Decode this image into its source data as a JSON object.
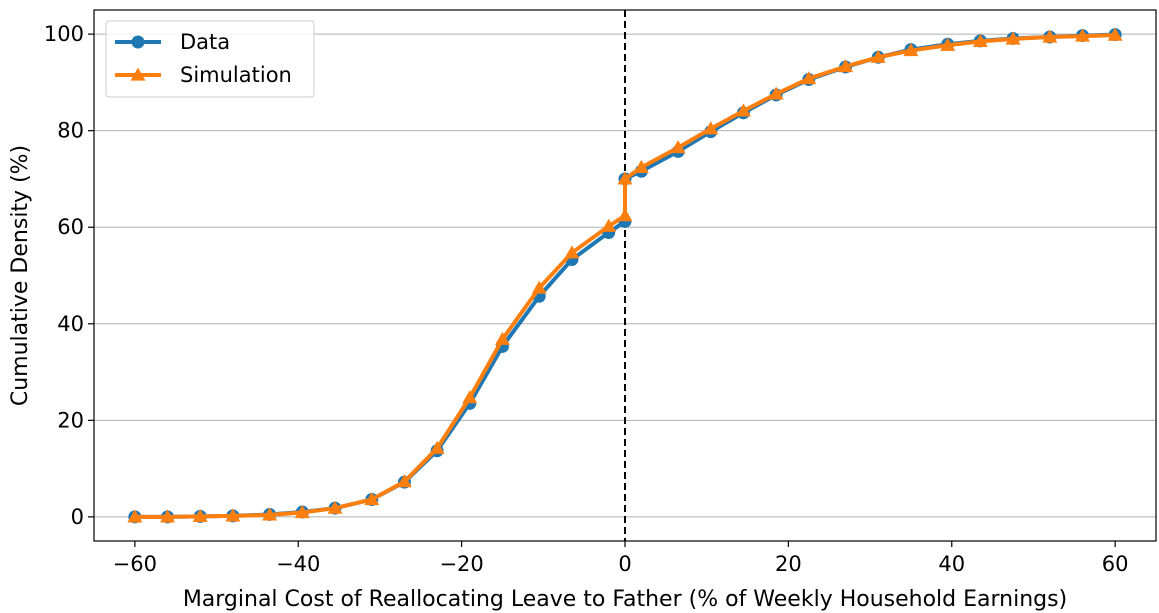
{
  "chart_data": {
    "type": "line",
    "title": "",
    "xlabel": "Marginal Cost of Reallocating Leave to Father (% of Weekly Household Earnings)",
    "ylabel": "Cumulative Density (%)",
    "xlim": [
      -65,
      65
    ],
    "ylim": [
      -5,
      105
    ],
    "xticks": [
      -60,
      -40,
      -20,
      0,
      20,
      40,
      60
    ],
    "xtick_labels": [
      "−60",
      "−40",
      "−20",
      "0",
      "20",
      "40",
      "60"
    ],
    "yticks": [
      0,
      20,
      40,
      60,
      80,
      100
    ],
    "ytick_labels": [
      "0",
      "20",
      "40",
      "60",
      "80",
      "100"
    ],
    "grid": "horizontal",
    "legend_position": "top-left",
    "reference_line": {
      "x": 0,
      "style": "dashed",
      "color": "#000000"
    },
    "series": [
      {
        "name": "Data",
        "marker": "circle",
        "color": "#1f77b4",
        "x": [
          -60,
          -56,
          -52,
          -48,
          -43.5,
          -39.5,
          -35.5,
          -31,
          -27,
          -23,
          -19,
          -15,
          -10.5,
          -6.5,
          -2,
          0,
          0,
          2,
          6.5,
          10.5,
          14.5,
          18.5,
          22.5,
          27,
          31,
          35,
          39.5,
          43.5,
          47.5,
          52,
          56,
          60
        ],
        "values": [
          0,
          0,
          0.1,
          0.2,
          0.5,
          1,
          1.8,
          3.6,
          7.2,
          13.7,
          23.5,
          35.3,
          45.7,
          53.3,
          58.9,
          61.2,
          70,
          71.6,
          75.7,
          79.8,
          83.7,
          87.4,
          90.6,
          93.2,
          95.2,
          96.8,
          97.9,
          98.6,
          99.1,
          99.4,
          99.7,
          99.9
        ]
      },
      {
        "name": "Simulation",
        "marker": "triangle",
        "color": "#ff7f0e",
        "x": [
          -60,
          -56,
          -52,
          -48,
          -43.5,
          -39.5,
          -35.5,
          -31,
          -27,
          -23,
          -19,
          -15,
          -10.5,
          -6.5,
          -2,
          0,
          0,
          2,
          6.5,
          10.5,
          14.5,
          18.5,
          22.5,
          27,
          31,
          35,
          39.5,
          43.5,
          47.5,
          52,
          56,
          60
        ],
        "values": [
          0,
          0,
          0.1,
          0.2,
          0.4,
          0.9,
          1.8,
          3.6,
          7.3,
          14.2,
          24.7,
          36.8,
          47.4,
          54.7,
          60.2,
          62.4,
          70,
          72.4,
          76.5,
          80.4,
          84.1,
          87.6,
          90.8,
          93.3,
          95.2,
          96.6,
          97.7,
          98.5,
          99.0,
          99.4,
          99.6,
          99.8
        ]
      }
    ]
  }
}
